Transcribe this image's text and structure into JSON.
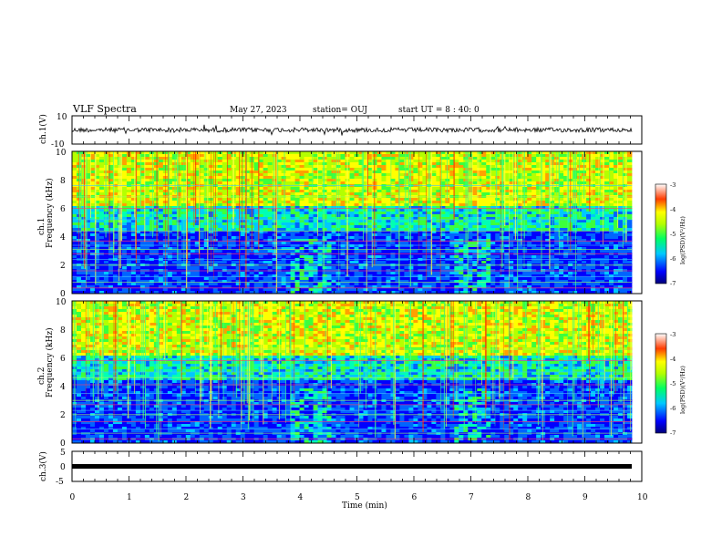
{
  "header": {
    "title": "VLF Spectra",
    "date": "May 27, 2023",
    "station": "station= OUJ",
    "start_ut": "start UT =  8 : 40: 0"
  },
  "colors": {
    "colormap": [
      "#00007a",
      "#0000ff",
      "#0064ff",
      "#00c8ff",
      "#00ffb4",
      "#3cff3c",
      "#b4ff00",
      "#ffff00",
      "#ffa000",
      "#ff2800",
      "#b40000"
    ],
    "waveform": "#000000"
  },
  "chart_data": [
    {
      "type": "line",
      "panel": "ch1-waveform",
      "ylabel": "ch.1(V)",
      "ylim": [
        -10,
        10
      ],
      "yticks": [
        "10",
        "-10"
      ],
      "xlim": [
        0,
        10
      ],
      "description_values": {
        "mean": 0,
        "amplitude_approx": 1.5
      }
    },
    {
      "type": "heatmap",
      "panel": "ch1-spectrogram",
      "ylabel": "ch.1\nFrequency  (kHz)",
      "ylim": [
        0,
        10
      ],
      "yticks": [
        "0",
        "2",
        "4",
        "6",
        "8",
        "10"
      ],
      "xlim": [
        0,
        10
      ],
      "colorbar": {
        "label": "log(PSD)(V²/Hz)",
        "range": [
          -7,
          -3
        ],
        "ticks": [
          "-3",
          "-4",
          "-5",
          "-6",
          "-7"
        ]
      }
    },
    {
      "type": "heatmap",
      "panel": "ch2-spectrogram",
      "ylabel": "ch.2\nFrequency  (kHz)",
      "ylim": [
        0,
        10
      ],
      "yticks": [
        "0",
        "2",
        "4",
        "6",
        "8",
        "10"
      ],
      "xlim": [
        0,
        10
      ],
      "colorbar": {
        "label": "log(PSD)(V²/Hz)",
        "range": [
          -7,
          -3
        ],
        "ticks": [
          "-3",
          "-4",
          "-5",
          "-6",
          "-7"
        ]
      }
    },
    {
      "type": "line",
      "panel": "ch3-waveform",
      "ylabel": "ch.3(V)",
      "ylim": [
        -5,
        5
      ],
      "yticks": [
        "5",
        "0",
        "-5"
      ],
      "xlim": [
        0,
        10
      ],
      "description_values": {
        "constant_value": 0
      }
    }
  ],
  "xaxis": {
    "label": "Time  (min)",
    "ticks": [
      "0",
      "1",
      "2",
      "3",
      "4",
      "5",
      "6",
      "7",
      "8",
      "9",
      "10"
    ]
  }
}
